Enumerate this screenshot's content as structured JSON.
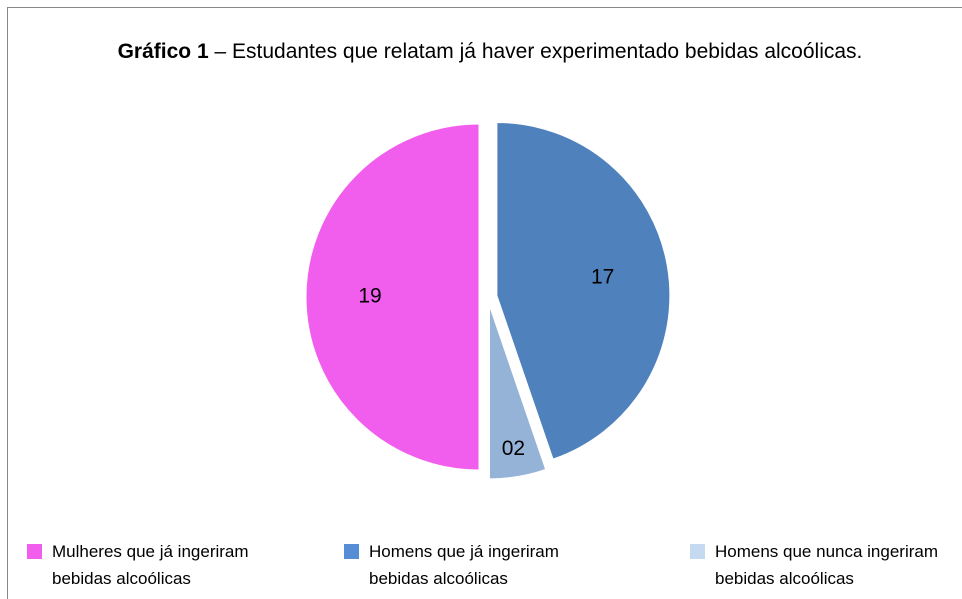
{
  "chart_data": {
    "type": "pie",
    "title_bold": "Gráfico 1",
    "title": "– Estudantes que relatam já haver experimentado bebidas alcoólicas.",
    "categories": [
      "Homens que já ingeriram bebidas alcoólicas",
      "Homens que nunca ingeriram bebidas alcoólicas",
      "Mulheres que já ingeriram bebidas alcoólicas"
    ],
    "values": [
      17,
      2,
      19
    ],
    "value_labels": [
      "17",
      "02",
      "19"
    ],
    "colors": [
      "#4f81bd",
      "#95b3d7",
      "#f15ded"
    ],
    "legend_colors": [
      "#558ed5",
      "#c5d9f1",
      "#f15ded"
    ],
    "legend": "bottom"
  }
}
